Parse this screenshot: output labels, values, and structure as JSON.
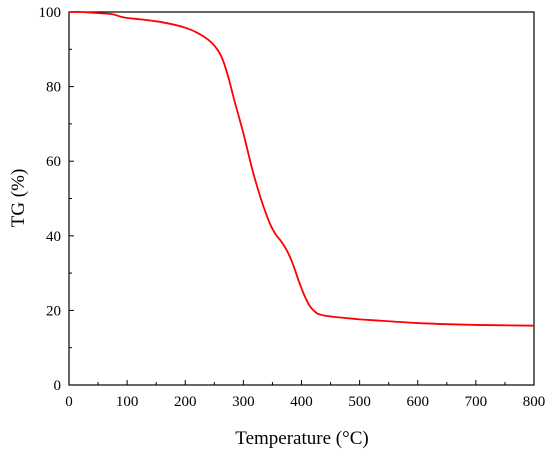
{
  "chart_data": {
    "type": "line",
    "title": "",
    "xlabel": "Temperature (°C)",
    "ylabel": "TG (%)",
    "xlim": [
      0,
      800
    ],
    "ylim": [
      0,
      100
    ],
    "xticks": [
      0,
      100,
      200,
      300,
      400,
      500,
      600,
      700,
      800
    ],
    "yticks": [
      0,
      20,
      40,
      60,
      80,
      100
    ],
    "grid": false,
    "legend": "none",
    "series": [
      {
        "color": "#ff0000",
        "x": [
          0,
          20,
          40,
          60,
          75,
          90,
          100,
          125,
          150,
          175,
          200,
          220,
          240,
          255,
          265,
          275,
          285,
          300,
          315,
          330,
          345,
          355,
          365,
          375,
          385,
          395,
          405,
          415,
          425,
          432,
          440,
          460,
          480,
          500,
          550,
          600,
          650,
          700,
          750,
          800
        ],
        "y": [
          100,
          100,
          99.8,
          99.6,
          99.4,
          98.7,
          98.4,
          98,
          97.5,
          96.8,
          95.8,
          94.5,
          92.5,
          90,
          87,
          82,
          76,
          67.5,
          58,
          50,
          43.5,
          40.5,
          38.5,
          36,
          32.5,
          28,
          24,
          21,
          19.4,
          18.9,
          18.6,
          18.2,
          17.9,
          17.6,
          17.1,
          16.6,
          16.3,
          16.1,
          16,
          15.9
        ]
      }
    ]
  }
}
